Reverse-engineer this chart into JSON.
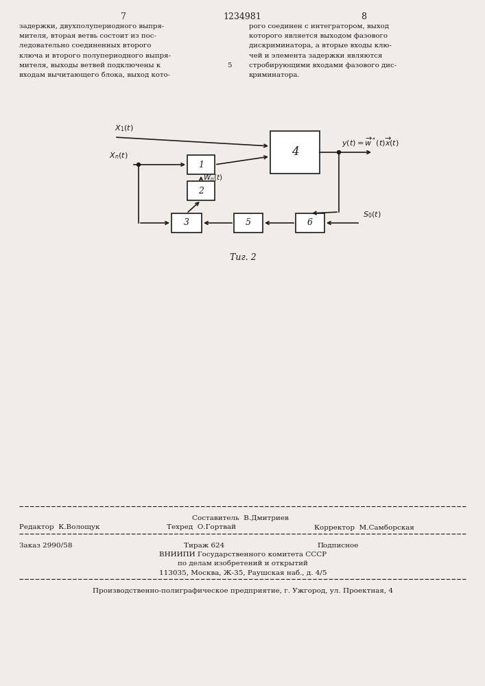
{
  "bg_color": "#f0ede8",
  "page_width": 7.07,
  "page_height": 10.0,
  "header_page_left": "7",
  "header_center": "1234981",
  "header_page_right": "8",
  "left_text": [
    "задержки, двухполупериодного выпря-",
    "мителя, вторая ветвь состоит из пос-",
    "ледовательно соединенных второго",
    "ключа и второго полупериодного выпря-",
    "мителя, выходы ветвей подключены к",
    "входам вычитающего блока, выход кото-"
  ],
  "left_line_num": "5",
  "right_text": [
    "рого соединен с интегратором, выход",
    "которого является выходом фазового",
    "дискриминатора, а вторые входы клю-",
    "чей и элемента задержки являются",
    "стробирующими входами фазового дис-",
    "криминатора."
  ],
  "fig_caption": "Τиг. 2",
  "footer_sestavitel": "Составитель  В.Дмитриев",
  "footer_redaktor": "Редактор  К.Волощук",
  "footer_tehred": "Техред  О.Гортвай",
  "footer_korrektor": "Корректор  М.Самборская",
  "footer_zakaz": "Заказ 2990/58",
  "footer_tirazh": "Тираж 624",
  "footer_podpisnoe": "Подписное",
  "footer_vniip1": "ВНИИПИ Государственного комитета СССР",
  "footer_vniip2": "по делам изобретений и открытий",
  "footer_addr": "113035, Москва, Ж-35, Раушская наб., д. 4/5",
  "footer_last": "Производственно-полиграфическое предприятие, г. Ужгород, ул. Проектная, 4"
}
